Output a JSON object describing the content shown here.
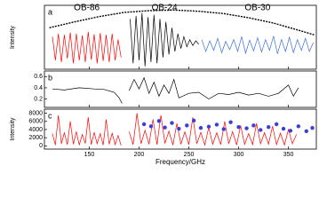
{
  "chart_data": [
    {
      "type": "line",
      "label": "a",
      "ylabel": "Intensity",
      "xlim": [
        105,
        378
      ],
      "ylim": [
        0,
        1.08
      ],
      "series": [
        {
          "name": "OB-86",
          "color": "#ff0000",
          "x": [
            113,
            116,
            119,
            122,
            125,
            128,
            131,
            134,
            137,
            140,
            143,
            146,
            149,
            152,
            155,
            158,
            161,
            164,
            167,
            170,
            173,
            176,
            179,
            182
          ],
          "values": [
            0.55,
            0.15,
            0.6,
            0.12,
            0.58,
            0.18,
            0.62,
            0.1,
            0.6,
            0.15,
            0.57,
            0.12,
            0.63,
            0.16,
            0.59,
            0.1,
            0.61,
            0.14,
            0.58,
            0.12,
            0.6,
            0.15,
            0.5,
            0.2
          ]
        },
        {
          "name": "OB-24",
          "color": "#000000",
          "x": [
            191,
            194,
            197,
            200,
            203,
            206,
            209,
            212,
            215,
            218,
            221,
            224,
            227,
            230,
            233,
            236,
            239,
            242,
            245,
            248,
            251,
            254,
            257,
            260
          ],
          "values": [
            0.85,
            0.1,
            0.9,
            0.15,
            0.95,
            0.05,
            0.88,
            0.12,
            0.92,
            0.1,
            0.85,
            0.2,
            0.8,
            0.25,
            0.7,
            0.3,
            0.6,
            0.35,
            0.55,
            0.38,
            0.5,
            0.4,
            0.48,
            0.42
          ]
        },
        {
          "name": "OB-30",
          "color": "#3a6fd8",
          "x": [
            263,
            267,
            271,
            275,
            279,
            283,
            287,
            291,
            295,
            299,
            303,
            307,
            311,
            315,
            319,
            323,
            327,
            331,
            335,
            339,
            343,
            347,
            351,
            355,
            359,
            363,
            367,
            371,
            375
          ],
          "values": [
            0.5,
            0.3,
            0.48,
            0.32,
            0.52,
            0.28,
            0.47,
            0.33,
            0.5,
            0.3,
            0.55,
            0.27,
            0.49,
            0.31,
            0.53,
            0.29,
            0.5,
            0.32,
            0.56,
            0.26,
            0.5,
            0.3,
            0.54,
            0.28,
            0.5,
            0.32,
            0.52,
            0.3,
            0.45
          ]
        },
        {
          "color": "#000000",
          "dash": true,
          "x": [
            110,
            135,
            160,
            185,
            210,
            235,
            260,
            285,
            310,
            335,
            360,
            376
          ],
          "values": [
            0.7,
            0.8,
            0.89,
            0.96,
            0.99,
            1.0,
            0.98,
            0.94,
            0.87,
            0.78,
            0.66,
            0.58
          ]
        }
      ]
    },
    {
      "type": "line",
      "label": "b",
      "xlim": [
        105,
        378
      ],
      "ylim": [
        0.05,
        0.7
      ],
      "yticks": [
        0.6,
        0.4,
        0.2
      ],
      "series": [
        {
          "color": "#000000",
          "x": [
            113,
            125,
            140,
            155,
            165,
            175,
            180,
            183,
            187,
            190,
            195,
            200,
            205,
            210,
            215,
            220,
            225,
            230,
            235,
            240,
            250,
            260,
            270,
            280,
            290,
            300,
            310,
            320,
            330,
            340,
            350,
            355,
            360
          ],
          "values": [
            0.38,
            0.36,
            0.4,
            0.38,
            0.37,
            0.32,
            0.22,
            0.12,
            null,
            0.35,
            0.55,
            0.38,
            0.58,
            0.3,
            0.5,
            0.25,
            0.45,
            0.3,
            0.55,
            0.22,
            0.3,
            0.32,
            0.2,
            0.3,
            0.28,
            0.32,
            0.27,
            0.3,
            0.25,
            0.3,
            0.45,
            0.25,
            0.4
          ]
        }
      ]
    },
    {
      "type": "line",
      "label": "c",
      "ylabel": "Intensity",
      "xlabel": "Frequency/GHz",
      "xlim": [
        105,
        378
      ],
      "ylim": [
        -800,
        9000
      ],
      "yticks": [
        0,
        2000,
        4000,
        6000,
        8000
      ],
      "xticks": [
        150,
        200,
        250,
        300,
        350
      ],
      "series": [
        {
          "color": "#ff0000",
          "x": [
            113,
            116,
            119,
            122,
            125,
            128,
            131,
            134,
            137,
            140,
            143,
            146,
            149,
            152,
            155,
            158,
            161,
            164,
            167,
            170,
            173,
            176,
            179,
            182,
            186,
            190,
            194,
            198,
            202,
            206,
            210,
            214,
            218,
            222,
            226,
            230,
            234,
            238,
            242,
            246,
            250,
            254,
            258,
            262,
            266,
            270,
            274,
            278,
            282,
            286,
            290,
            294,
            298,
            302,
            306,
            310,
            314,
            318,
            322,
            326,
            330,
            334,
            338,
            342,
            346,
            350,
            354,
            358
          ],
          "values": [
            3000,
            200,
            7500,
            500,
            3200,
            300,
            6000,
            400,
            3500,
            200,
            2800,
            600,
            7000,
            300,
            3300,
            500,
            3000,
            200,
            6500,
            400,
            3100,
            300,
            2500,
            100,
            null,
            3500,
            300,
            8000,
            500,
            3800,
            400,
            6500,
            300,
            7500,
            600,
            3600,
            200,
            5500,
            400,
            3400,
            300,
            7000,
            500,
            3300,
            200,
            4500,
            400,
            3200,
            300,
            6000,
            500,
            3500,
            200,
            5000,
            400,
            3000,
            300,
            5500,
            500,
            3200,
            400,
            4800,
            300,
            3100,
            200,
            4000,
            500,
            2800
          ]
        },
        {
          "type": "scatter",
          "color": "#3d3dd8",
          "x": [
            205,
            212,
            220,
            226,
            233,
            240,
            248,
            255,
            262,
            270,
            278,
            285,
            292,
            300,
            308,
            315,
            322,
            330,
            338,
            345,
            352,
            360,
            368,
            374
          ],
          "values": [
            5300,
            4800,
            6100,
            4500,
            5600,
            4200,
            5000,
            6200,
            4400,
            4700,
            5200,
            4100,
            5800,
            4600,
            4300,
            5000,
            3900,
            4600,
            5300,
            4200,
            3700,
            4800,
            3600,
            4400
          ]
        }
      ]
    }
  ]
}
